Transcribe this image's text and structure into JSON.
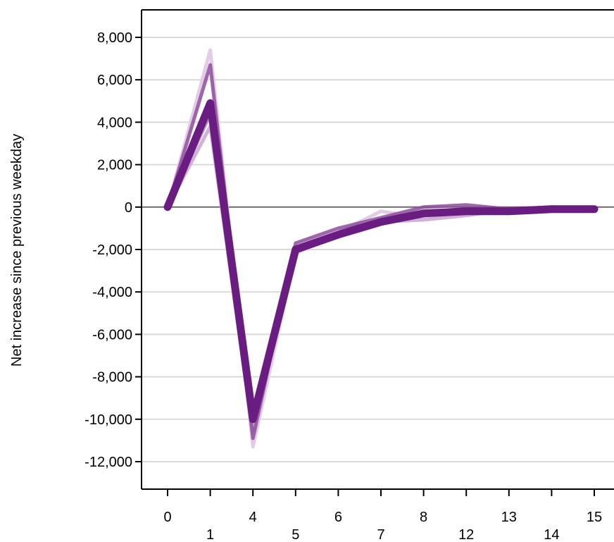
{
  "chart_data": {
    "type": "line",
    "title": "",
    "xlabel": "",
    "ylabel": "Net increase since previous weekday",
    "x": [
      "0",
      "1",
      "4",
      "5",
      "6",
      "7",
      "8",
      "12",
      "13",
      "14",
      "15"
    ],
    "ylim": [
      -13000,
      9300
    ],
    "yticks": [
      8000,
      6000,
      4000,
      2000,
      0,
      -2000,
      -4000,
      -6000,
      -8000,
      -10000,
      -12000
    ],
    "ytick_labels": [
      "8,000",
      "6,000",
      "4,000",
      "2,000",
      "0",
      "-2,000",
      "-4,000",
      "-6,000",
      "-8,000",
      "-10,000",
      "-12,000"
    ],
    "grid": true,
    "legend": "none",
    "colors": {
      "series": [
        "#e3cde6",
        "#c9a3cf",
        "#ac7fb8",
        "#8e4c9c",
        "#6a1d80"
      ],
      "zero_line": "#6b6b6b",
      "grid": "#d9d9d9",
      "axis": "#000000"
    },
    "series": [
      {
        "values": [
          0,
          7400,
          -11300,
          -2200,
          -1200,
          -200,
          -500,
          -200,
          -200,
          -100,
          -100
        ]
      },
      {
        "values": [
          0,
          3800,
          -10600,
          -2000,
          -1200,
          -700,
          -600,
          -400,
          -100,
          -100,
          -100
        ]
      },
      {
        "values": [
          0,
          4400,
          -9900,
          -1900,
          -1300,
          -600,
          -300,
          -100,
          -200,
          -100,
          -100
        ]
      },
      {
        "values": [
          0,
          6700,
          -10900,
          -1700,
          -1000,
          -500,
          0,
          100,
          -100,
          0,
          -100
        ]
      },
      {
        "values": [
          0,
          4900,
          -10000,
          -2000,
          -1300,
          -700,
          -300,
          -200,
          -200,
          -100,
          -100
        ]
      }
    ]
  }
}
